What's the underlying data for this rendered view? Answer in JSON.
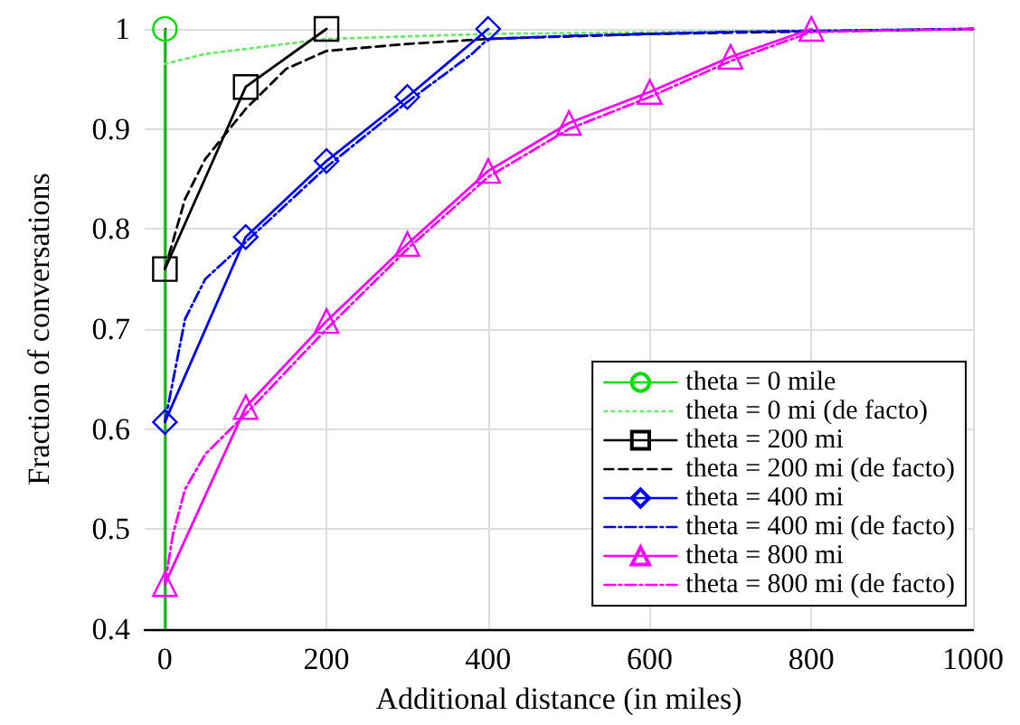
{
  "chart_data": {
    "type": "line",
    "xlabel": "Additional distance (in miles)",
    "ylabel": "Fraction of conversations",
    "xlim": [
      -25,
      1000
    ],
    "ylim": [
      0.4,
      1
    ],
    "xticks": [
      0,
      200,
      400,
      600,
      800,
      1000
    ],
    "yticks": [
      0.4,
      0.5,
      0.6,
      0.7,
      0.8,
      0.9,
      1
    ],
    "grid": true,
    "legend": "bottom right",
    "ref_lines": [
      {
        "axis": "x",
        "value": 0,
        "color": "#00e000",
        "line_style": "solid"
      }
    ],
    "series": [
      {
        "name": "theta = 0 mile",
        "color": "#00e000",
        "marker": "circle",
        "line_style": "solid",
        "x": [
          0
        ],
        "values": [
          1
        ]
      },
      {
        "name": "theta = 0 mi (de facto)",
        "color": "#66ee66",
        "marker": "none",
        "line_style": "dotted",
        "x": [
          0,
          50,
          100,
          150,
          200,
          400,
          1000
        ],
        "values": [
          0.965,
          0.975,
          0.98,
          0.985,
          0.99,
          0.995,
          1
        ]
      },
      {
        "name": "theta = 200 mi",
        "color": "#000000",
        "marker": "square",
        "line_style": "solid",
        "x": [
          0,
          100,
          200
        ],
        "values": [
          0.76,
          0.942,
          1
        ]
      },
      {
        "name": "theta = 200 mi (de facto)",
        "color": "#000000",
        "marker": "none",
        "line_style": "dashed",
        "x": [
          0,
          25,
          50,
          100,
          150,
          200,
          300,
          400,
          600,
          1000
        ],
        "values": [
          0.76,
          0.83,
          0.87,
          0.92,
          0.96,
          0.978,
          0.985,
          0.99,
          0.995,
          1
        ]
      },
      {
        "name": "theta = 400 mi",
        "color": "#0000ff",
        "marker": "diamond",
        "line_style": "solid",
        "x": [
          0,
          100,
          200,
          300,
          400
        ],
        "values": [
          0.607,
          0.792,
          0.868,
          0.932,
          1
        ]
      },
      {
        "name": "theta = 400 mi (de facto)",
        "color": "#0000ff",
        "marker": "none",
        "line_style": "dashdot",
        "x": [
          0,
          25,
          50,
          100,
          200,
          300,
          380,
          400,
          500,
          700,
          1000
        ],
        "values": [
          0.607,
          0.71,
          0.75,
          0.787,
          0.862,
          0.927,
          0.975,
          0.99,
          0.993,
          0.997,
          1
        ]
      },
      {
        "name": "theta = 800 mi",
        "color": "#ff00ff",
        "marker": "triangle",
        "line_style": "solid",
        "x": [
          0,
          100,
          200,
          300,
          400,
          500,
          600,
          700,
          800
        ],
        "values": [
          0.445,
          0.622,
          0.708,
          0.785,
          0.858,
          0.906,
          0.937,
          0.972,
          1
        ]
      },
      {
        "name": "theta = 800 mi (de facto)",
        "color": "#ff00ff",
        "marker": "none",
        "line_style": "dashdot",
        "x": [
          0,
          10,
          25,
          50,
          100,
          200,
          300,
          400,
          500,
          600,
          700,
          800,
          1000
        ],
        "values": [
          0.445,
          0.495,
          0.54,
          0.575,
          0.615,
          0.7,
          0.78,
          0.852,
          0.9,
          0.932,
          0.968,
          0.997,
          1
        ]
      }
    ]
  }
}
